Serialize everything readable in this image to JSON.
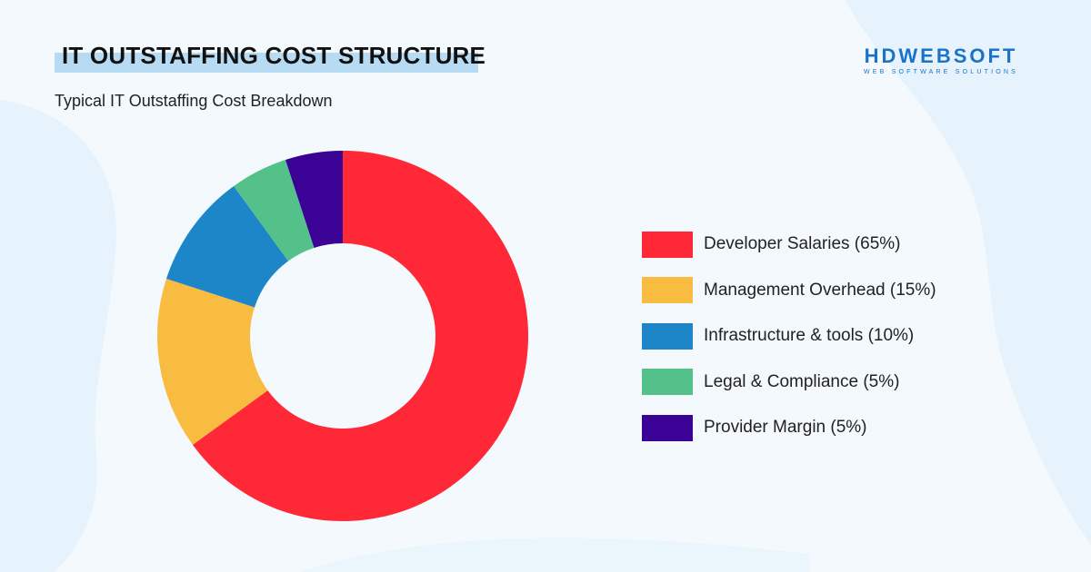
{
  "header": {
    "title": "IT OUTSTAFFING COST STRUCTURE",
    "subtitle": "Typical IT Outstaffing Cost Breakdown"
  },
  "logo": {
    "name": "HDWEBSOFT",
    "tagline": "WEB SOFTWARE SOLUTIONS",
    "color": "#1a73c8"
  },
  "colors": {
    "background": "#f4f9fd",
    "title_highlight": "#b7dbf3"
  },
  "chart_data": {
    "type": "pie",
    "variant": "donut",
    "title": "",
    "categories": [
      "Developer Salaries",
      "Management Overhead",
      "Infrastructure & tools",
      "Legal & Compliance",
      "Provider Margin"
    ],
    "values": [
      65,
      15,
      10,
      5,
      5
    ],
    "unit": "%",
    "colors": [
      "#fe2837",
      "#f8bd40",
      "#1c86c8",
      "#55c18a",
      "#3a0396"
    ],
    "legend_labels": [
      "Developer Salaries (65%)",
      "Management Overhead (15%)",
      "Infrastructure & tools (10%)",
      "Legal & Compliance (5%)",
      "Provider Margin (5%)"
    ],
    "legend_position": "right",
    "start_angle": "top",
    "direction": "clockwise"
  }
}
